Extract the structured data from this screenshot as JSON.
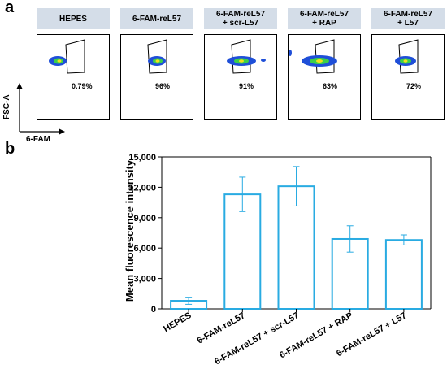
{
  "panel_a": {
    "letter": "a",
    "y_axis_label": "FSC-A",
    "x_axis_label": "6-FAM",
    "plots": [
      {
        "header": [
          "HEPES"
        ],
        "percent": "0.79%"
      },
      {
        "header": [
          "6-FAM-reL57"
        ],
        "percent": "96%"
      },
      {
        "header": [
          "6-FAM-reL57",
          "+ scr-L57"
        ],
        "percent": "91%"
      },
      {
        "header": [
          "6-FAM-reL57",
          "+ RAP"
        ],
        "percent": "63%"
      },
      {
        "header": [
          "6-FAM-reL57",
          "+ L57"
        ],
        "percent": "72%"
      }
    ]
  },
  "panel_b": {
    "letter": "b"
  },
  "chart_data": {
    "type": "bar",
    "categories": [
      "HEPES",
      "6-FAM-reL57",
      "6-FAM-reL57 + scr-L57",
      "6-FAM-reL57 + RAP",
      "6-FAM-reL57 + L57"
    ],
    "values": [
      800,
      11300,
      12100,
      6900,
      6800
    ],
    "errors": [
      350,
      1700,
      1950,
      1300,
      500
    ],
    "ylabel": "Mean fluorescence intensity",
    "ylim": [
      0,
      15000
    ],
    "yticks": [
      "0",
      "3,000",
      "6,000",
      "9,000",
      "12,000",
      "15,000"
    ],
    "ytick_values": [
      0,
      3000,
      6000,
      9000,
      12000,
      15000
    ],
    "bar_color": "#29abe2",
    "grid": false
  }
}
